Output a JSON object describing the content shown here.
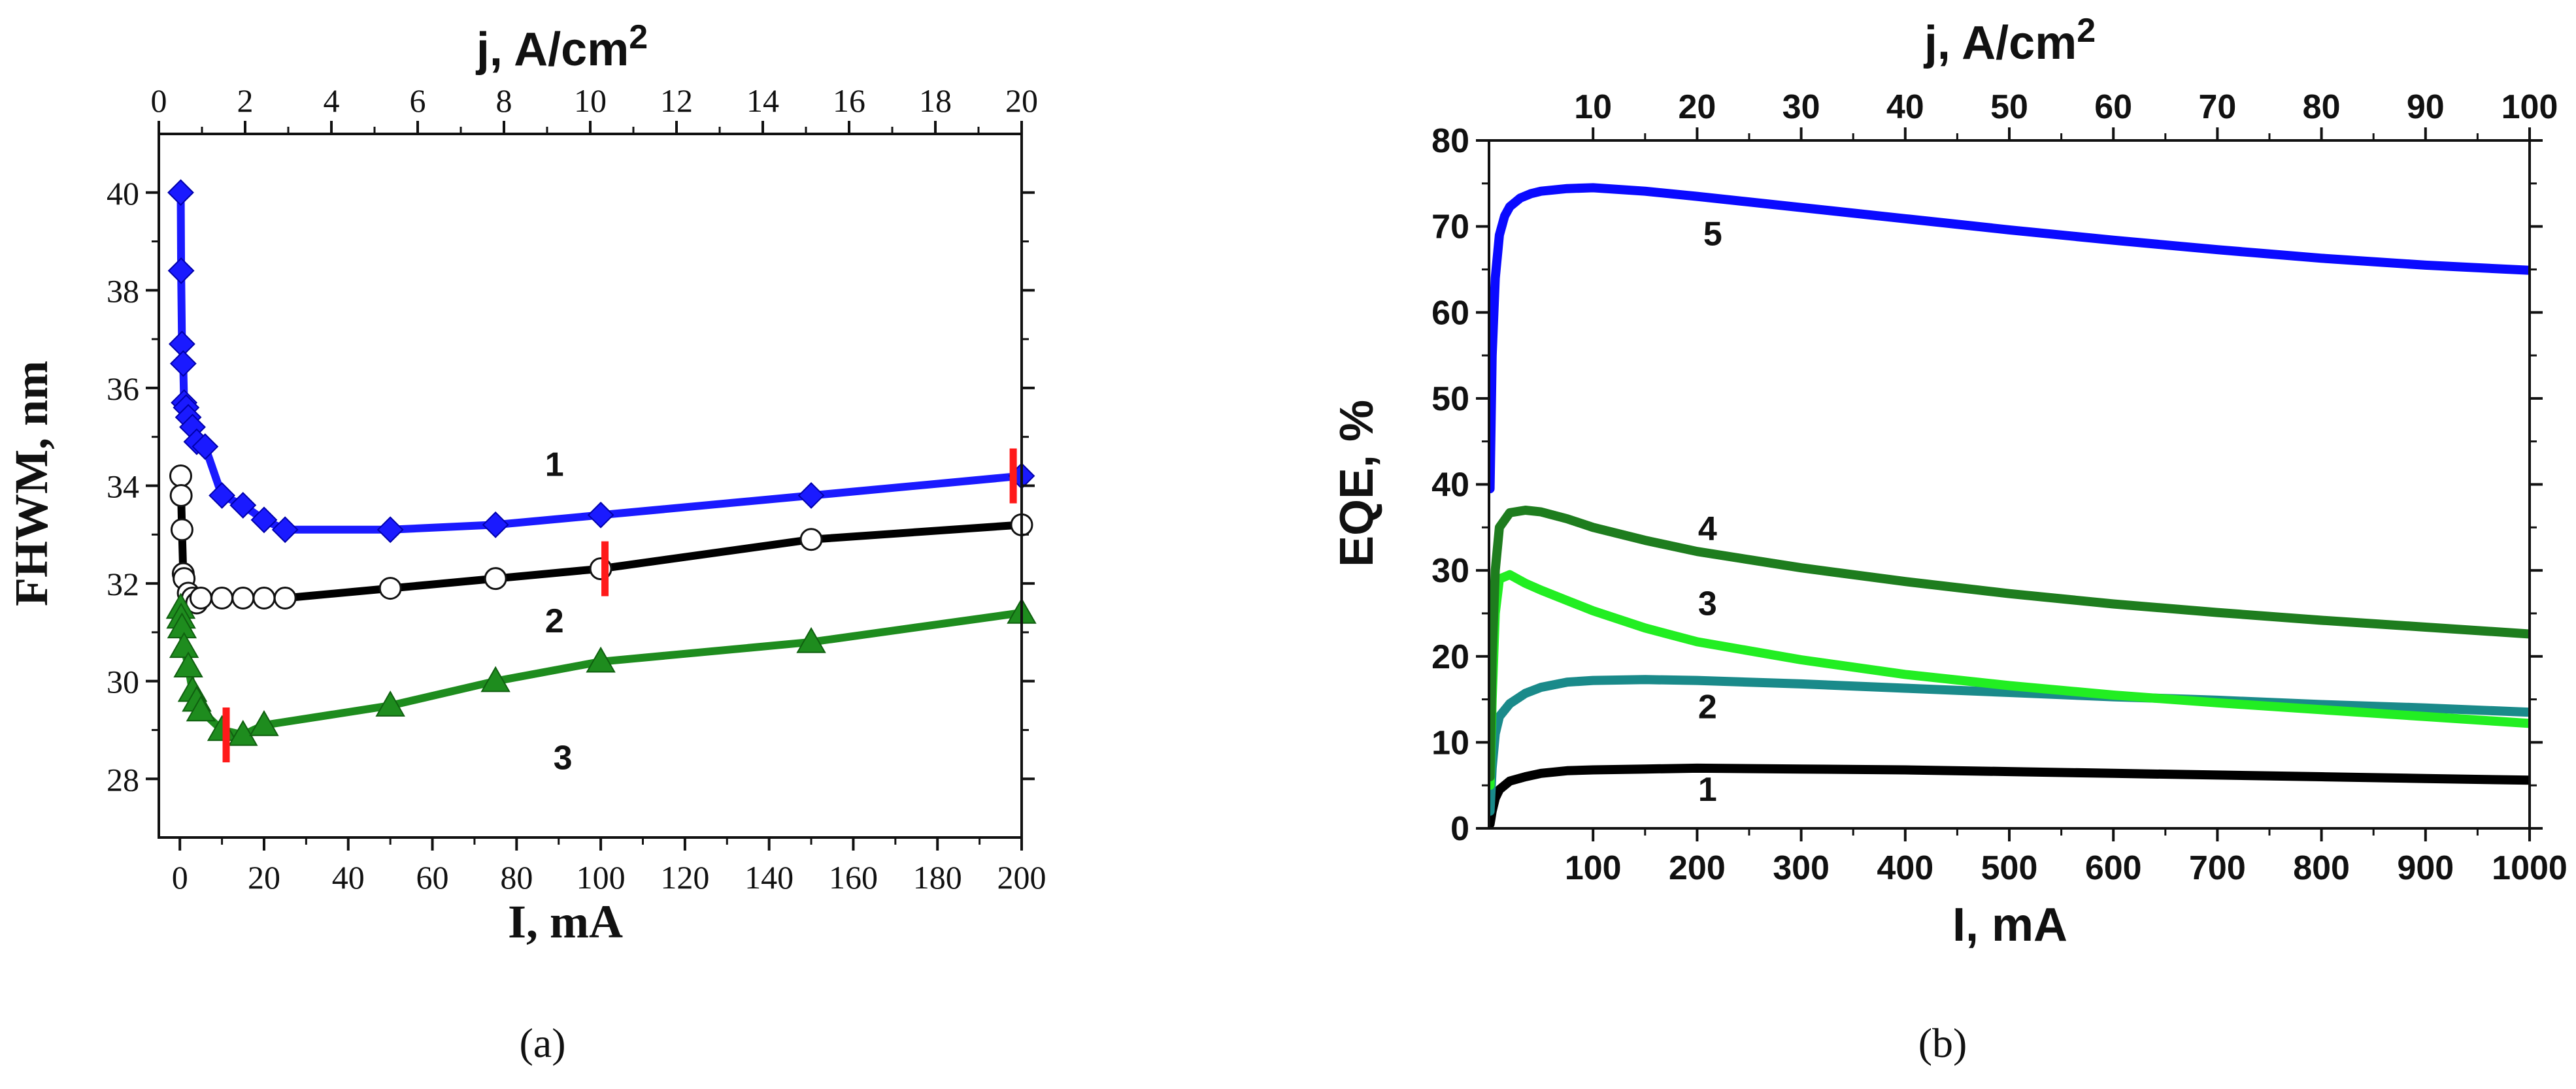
{
  "panels": [
    {
      "label": "(a)"
    },
    {
      "label": "(b)"
    }
  ],
  "chart_data": [
    {
      "type": "line",
      "title": "",
      "xlabel": "I, mA",
      "ylabel": "FHWM, nm",
      "x2label": "j, A/cm",
      "x2label_sup": "2",
      "xlim": [
        -5,
        200
      ],
      "ylim": [
        26.8,
        41.2
      ],
      "x2lim": [
        0,
        20
      ],
      "xticks": [
        0,
        20,
        40,
        60,
        80,
        100,
        120,
        140,
        160,
        180,
        200
      ],
      "yticks": [
        28,
        30,
        32,
        34,
        36,
        38,
        40
      ],
      "x2ticks": [
        0,
        2,
        4,
        6,
        8,
        10,
        12,
        14,
        16,
        18,
        20
      ],
      "series": [
        {
          "name": "1",
          "color": "#1a1aff",
          "marker": "diamond",
          "x": [
            0.2,
            0.3,
            0.5,
            0.8,
            1,
            1.5,
            2,
            3,
            4,
            6,
            10,
            15,
            20,
            25,
            50,
            75,
            100,
            150,
            200
          ],
          "y": [
            40.0,
            38.4,
            36.9,
            36.5,
            35.7,
            35.6,
            35.4,
            35.2,
            34.9,
            34.8,
            33.8,
            33.6,
            33.3,
            33.1,
            33.1,
            33.2,
            33.4,
            33.8,
            34.2
          ]
        },
        {
          "name": "2",
          "color": "#000000",
          "marker": "circle",
          "x": [
            0.2,
            0.3,
            0.5,
            0.8,
            1,
            2,
            3,
            4,
            5,
            10,
            15,
            20,
            25,
            50,
            75,
            100,
            150,
            200
          ],
          "y": [
            34.2,
            33.8,
            33.1,
            32.2,
            32.1,
            31.8,
            31.7,
            31.6,
            31.7,
            31.7,
            31.7,
            31.7,
            31.7,
            31.9,
            32.1,
            32.3,
            32.9,
            33.2
          ]
        },
        {
          "name": "3",
          "color": "#1e8c1e",
          "marker": "triangle",
          "x": [
            0.2,
            0.3,
            0.5,
            1,
            2,
            3,
            4,
            5,
            10,
            15,
            20,
            50,
            75,
            100,
            150,
            200
          ],
          "y": [
            31.5,
            31.3,
            31.1,
            30.7,
            30.3,
            29.8,
            29.6,
            29.4,
            29.0,
            28.9,
            29.1,
            29.5,
            30.0,
            30.4,
            30.8,
            31.4
          ]
        }
      ],
      "annotations": [
        {
          "text": "1",
          "x": 89,
          "y": 34.2
        },
        {
          "text": "2",
          "x": 89,
          "y": 31.0
        },
        {
          "text": "3",
          "x": 91,
          "y": 28.2
        }
      ],
      "markers_red": [
        {
          "x": 198,
          "y": 34.2
        },
        {
          "x": 101,
          "y": 32.3
        },
        {
          "x": 11,
          "y": 28.9
        }
      ]
    },
    {
      "type": "line",
      "title": "",
      "xlabel": "I, mA",
      "ylabel": "EQE, %",
      "x2label": "j, A/cm",
      "x2label_sup": "2",
      "xlim": [
        0,
        1000
      ],
      "ylim": [
        0,
        80
      ],
      "x2lim": [
        0,
        100
      ],
      "xticks": [
        100,
        200,
        300,
        400,
        500,
        600,
        700,
        800,
        900,
        1000
      ],
      "yticks": [
        0,
        10,
        20,
        30,
        40,
        50,
        60,
        70,
        80
      ],
      "x2ticks": [
        10,
        20,
        30,
        40,
        50,
        60,
        70,
        80,
        90,
        100
      ],
      "series": [
        {
          "name": "1",
          "color": "#000000",
          "x": [
            1,
            3,
            6,
            10,
            20,
            35,
            50,
            75,
            100,
            150,
            200,
            300,
            400,
            500,
            600,
            700,
            800,
            900,
            1000
          ],
          "y": [
            0.5,
            2,
            3.5,
            4.5,
            5.5,
            6.0,
            6.4,
            6.7,
            6.8,
            6.9,
            7.0,
            6.9,
            6.8,
            6.6,
            6.4,
            6.2,
            6.0,
            5.8,
            5.6
          ]
        },
        {
          "name": "2",
          "color": "#1a8a8a",
          "x": [
            1,
            3,
            6,
            10,
            20,
            35,
            50,
            75,
            100,
            150,
            200,
            300,
            400,
            500,
            600,
            700,
            800,
            900,
            1000
          ],
          "y": [
            2,
            7,
            11,
            13,
            14.5,
            15.7,
            16.4,
            17.0,
            17.2,
            17.3,
            17.2,
            16.8,
            16.3,
            15.8,
            15.3,
            14.9,
            14.4,
            14.0,
            13.5
          ]
        },
        {
          "name": "3",
          "color": "#22ee22",
          "x": [
            1,
            3,
            6,
            10,
            20,
            35,
            50,
            75,
            100,
            150,
            200,
            300,
            400,
            500,
            600,
            700,
            800,
            900,
            1000
          ],
          "y": [
            5,
            15,
            25,
            29,
            29.5,
            28.5,
            27.7,
            26.5,
            25.3,
            23.3,
            21.7,
            19.6,
            17.9,
            16.6,
            15.5,
            14.6,
            13.8,
            13.0,
            12.2
          ]
        },
        {
          "name": "4",
          "color": "#1e7d1e",
          "x": [
            1,
            3,
            6,
            10,
            20,
            35,
            50,
            75,
            100,
            150,
            200,
            300,
            400,
            500,
            600,
            700,
            800,
            900,
            1000
          ],
          "y": [
            6,
            20,
            30,
            35,
            36.7,
            37.0,
            36.8,
            36.0,
            35.0,
            33.5,
            32.2,
            30.3,
            28.7,
            27.3,
            26.1,
            25.1,
            24.2,
            23.4,
            22.6
          ]
        },
        {
          "name": "5",
          "color": "#0a0aff",
          "x": [
            1,
            3,
            6,
            10,
            15,
            20,
            30,
            40,
            50,
            75,
            100,
            150,
            200,
            300,
            400,
            500,
            600,
            700,
            800,
            900,
            1000
          ],
          "y": [
            39.5,
            55,
            64,
            69,
            71.2,
            72.3,
            73.3,
            73.8,
            74.1,
            74.4,
            74.5,
            74.1,
            73.5,
            72.2,
            70.9,
            69.6,
            68.4,
            67.3,
            66.3,
            65.5,
            64.9
          ]
        }
      ],
      "annotations": [
        {
          "text": "1",
          "x": 210,
          "y": 3.2
        },
        {
          "text": "2",
          "x": 210,
          "y": 12.8
        },
        {
          "text": "3",
          "x": 210,
          "y": 24.8
        },
        {
          "text": "4",
          "x": 210,
          "y": 33.5
        },
        {
          "text": "5",
          "x": 215,
          "y": 67.8
        }
      ]
    }
  ]
}
